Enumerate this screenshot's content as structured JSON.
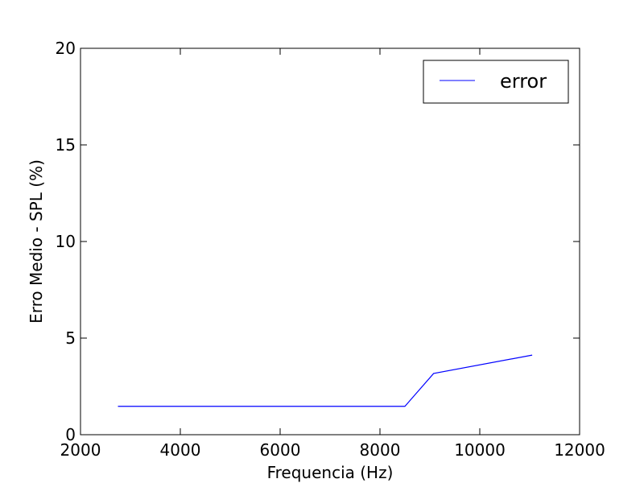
{
  "chart_data": {
    "type": "line",
    "title": "",
    "xlabel": "Frequencia (Hz)",
    "ylabel": "Erro Medio - SPL (%)",
    "xlim": [
      2000,
      12000
    ],
    "ylim": [
      0,
      20
    ],
    "xticks": [
      2000,
      4000,
      6000,
      8000,
      10000,
      12000
    ],
    "yticks": [
      0,
      5,
      10,
      15,
      20
    ],
    "grid": false,
    "legend_position": "top-right",
    "series": [
      {
        "name": "error",
        "color": "#0000ff",
        "x": [
          2750,
          8500,
          9075,
          11050
        ],
        "y": [
          1.47,
          1.47,
          3.17,
          4.12
        ]
      }
    ]
  }
}
